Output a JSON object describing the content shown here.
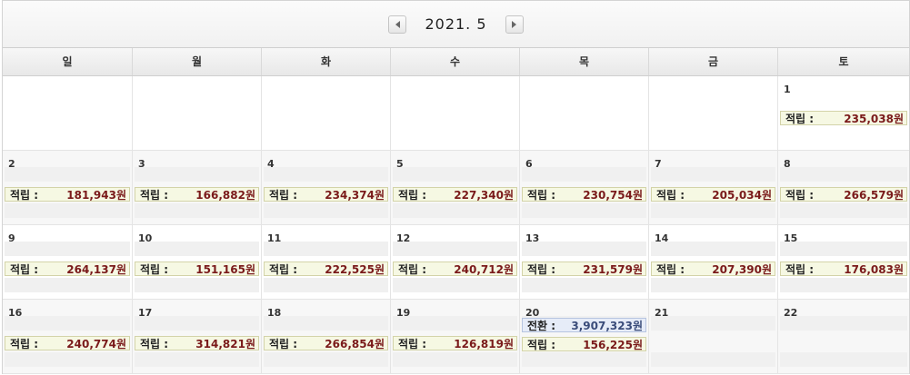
{
  "header": {
    "title": "2021. 5",
    "prev_icon": "caret-left-icon",
    "next_icon": "caret-right-icon"
  },
  "weekdays": [
    "일",
    "월",
    "화",
    "수",
    "목",
    "금",
    "토"
  ],
  "weeks": [
    [
      {
        "day": ""
      },
      {
        "day": ""
      },
      {
        "day": ""
      },
      {
        "day": ""
      },
      {
        "day": ""
      },
      {
        "day": ""
      },
      {
        "day": "1",
        "entries": [
          {
            "label": "적립 :",
            "amount": "235,038원"
          }
        ]
      }
    ],
    [
      {
        "day": "2",
        "entries": [
          {
            "label": "적립 :",
            "amount": "181,943원"
          }
        ]
      },
      {
        "day": "3",
        "entries": [
          {
            "label": "적립 :",
            "amount": "166,882원"
          }
        ]
      },
      {
        "day": "4",
        "entries": [
          {
            "label": "적립 :",
            "amount": "234,374원"
          }
        ]
      },
      {
        "day": "5",
        "entries": [
          {
            "label": "적립 :",
            "amount": "227,340원"
          }
        ]
      },
      {
        "day": "6",
        "entries": [
          {
            "label": "적립 :",
            "amount": "230,754원"
          }
        ]
      },
      {
        "day": "7",
        "entries": [
          {
            "label": "적립 :",
            "amount": "205,034원"
          }
        ]
      },
      {
        "day": "8",
        "entries": [
          {
            "label": "적립 :",
            "amount": "266,579원"
          }
        ]
      }
    ],
    [
      {
        "day": "9",
        "entries": [
          {
            "label": "적립 :",
            "amount": "264,137원"
          }
        ]
      },
      {
        "day": "10",
        "entries": [
          {
            "label": "적립 :",
            "amount": "151,165원"
          }
        ]
      },
      {
        "day": "11",
        "entries": [
          {
            "label": "적립 :",
            "amount": "222,525원"
          }
        ]
      },
      {
        "day": "12",
        "entries": [
          {
            "label": "적립 :",
            "amount": "240,712원"
          }
        ]
      },
      {
        "day": "13",
        "entries": [
          {
            "label": "적립 :",
            "amount": "231,579원"
          }
        ]
      },
      {
        "day": "14",
        "entries": [
          {
            "label": "적립 :",
            "amount": "207,390원"
          }
        ]
      },
      {
        "day": "15",
        "entries": [
          {
            "label": "적립 :",
            "amount": "176,083원"
          }
        ]
      }
    ],
    [
      {
        "day": "16",
        "entries": [
          {
            "label": "적립 :",
            "amount": "240,774원"
          }
        ]
      },
      {
        "day": "17",
        "entries": [
          {
            "label": "적립 :",
            "amount": "314,821원"
          }
        ]
      },
      {
        "day": "18",
        "entries": [
          {
            "label": "적립 :",
            "amount": "266,854원"
          }
        ]
      },
      {
        "day": "19",
        "entries": [
          {
            "label": "적립 :",
            "amount": "126,819원"
          }
        ]
      },
      {
        "day": "20",
        "entries": [
          {
            "label": "전환 :",
            "amount": "3,907,323원",
            "kind": "conv"
          },
          {
            "label": "적립 :",
            "amount": "156,225원"
          }
        ]
      },
      {
        "day": "21"
      },
      {
        "day": "22"
      }
    ]
  ],
  "colors": {
    "accrual_bg": "#f6f8e3",
    "accrual_amount": "#7a1a1a",
    "conversion_bg": "#e6ecf8",
    "conversion_amount": "#3a4c7a"
  }
}
